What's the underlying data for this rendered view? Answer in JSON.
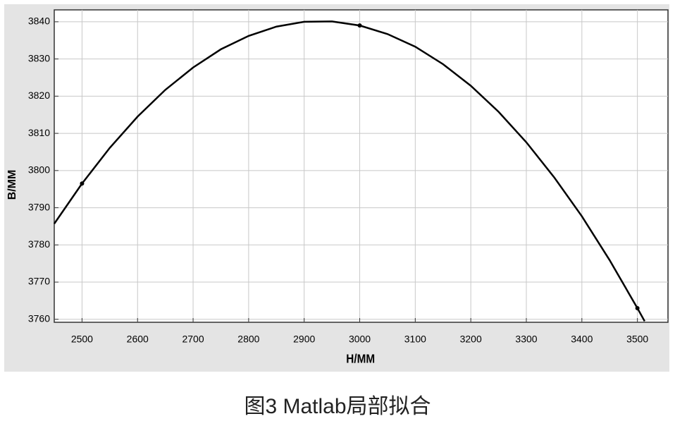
{
  "chart_data": {
    "type": "line",
    "caption": "图3 Matlab局部拟合",
    "xlabel": "H/MM",
    "ylabel": "B/MM",
    "x": [
      2450,
      2500,
      2550,
      2600,
      2650,
      2700,
      2750,
      2800,
      2850,
      2900,
      2950,
      3000,
      3050,
      3100,
      3150,
      3200,
      3250,
      3300,
      3350,
      3400,
      3450,
      3500,
      3513
    ],
    "values": [
      3785.7,
      3796.5,
      3806.1,
      3814.5,
      3821.7,
      3827.7,
      3832.6,
      3836.2,
      3838.7,
      3840.0,
      3840.1,
      3839.0,
      3836.7,
      3833.3,
      3828.6,
      3822.8,
      3815.8,
      3807.6,
      3798.2,
      3787.7,
      3775.9,
      3763.0,
      3759.5
    ],
    "color": "#000000",
    "points": {
      "x": [
        2500,
        3000,
        3500
      ],
      "values": [
        3796.5,
        3839.0,
        3763.0
      ]
    },
    "xlim": [
      2450,
      3555
    ],
    "ylim": [
      3759.2,
      3843.2
    ],
    "xticks": [
      2500,
      2600,
      2700,
      2800,
      2900,
      3000,
      3100,
      3200,
      3300,
      3400,
      3500
    ],
    "yticks": [
      3760,
      3770,
      3780,
      3790,
      3800,
      3810,
      3820,
      3830,
      3840
    ],
    "grid": true
  }
}
